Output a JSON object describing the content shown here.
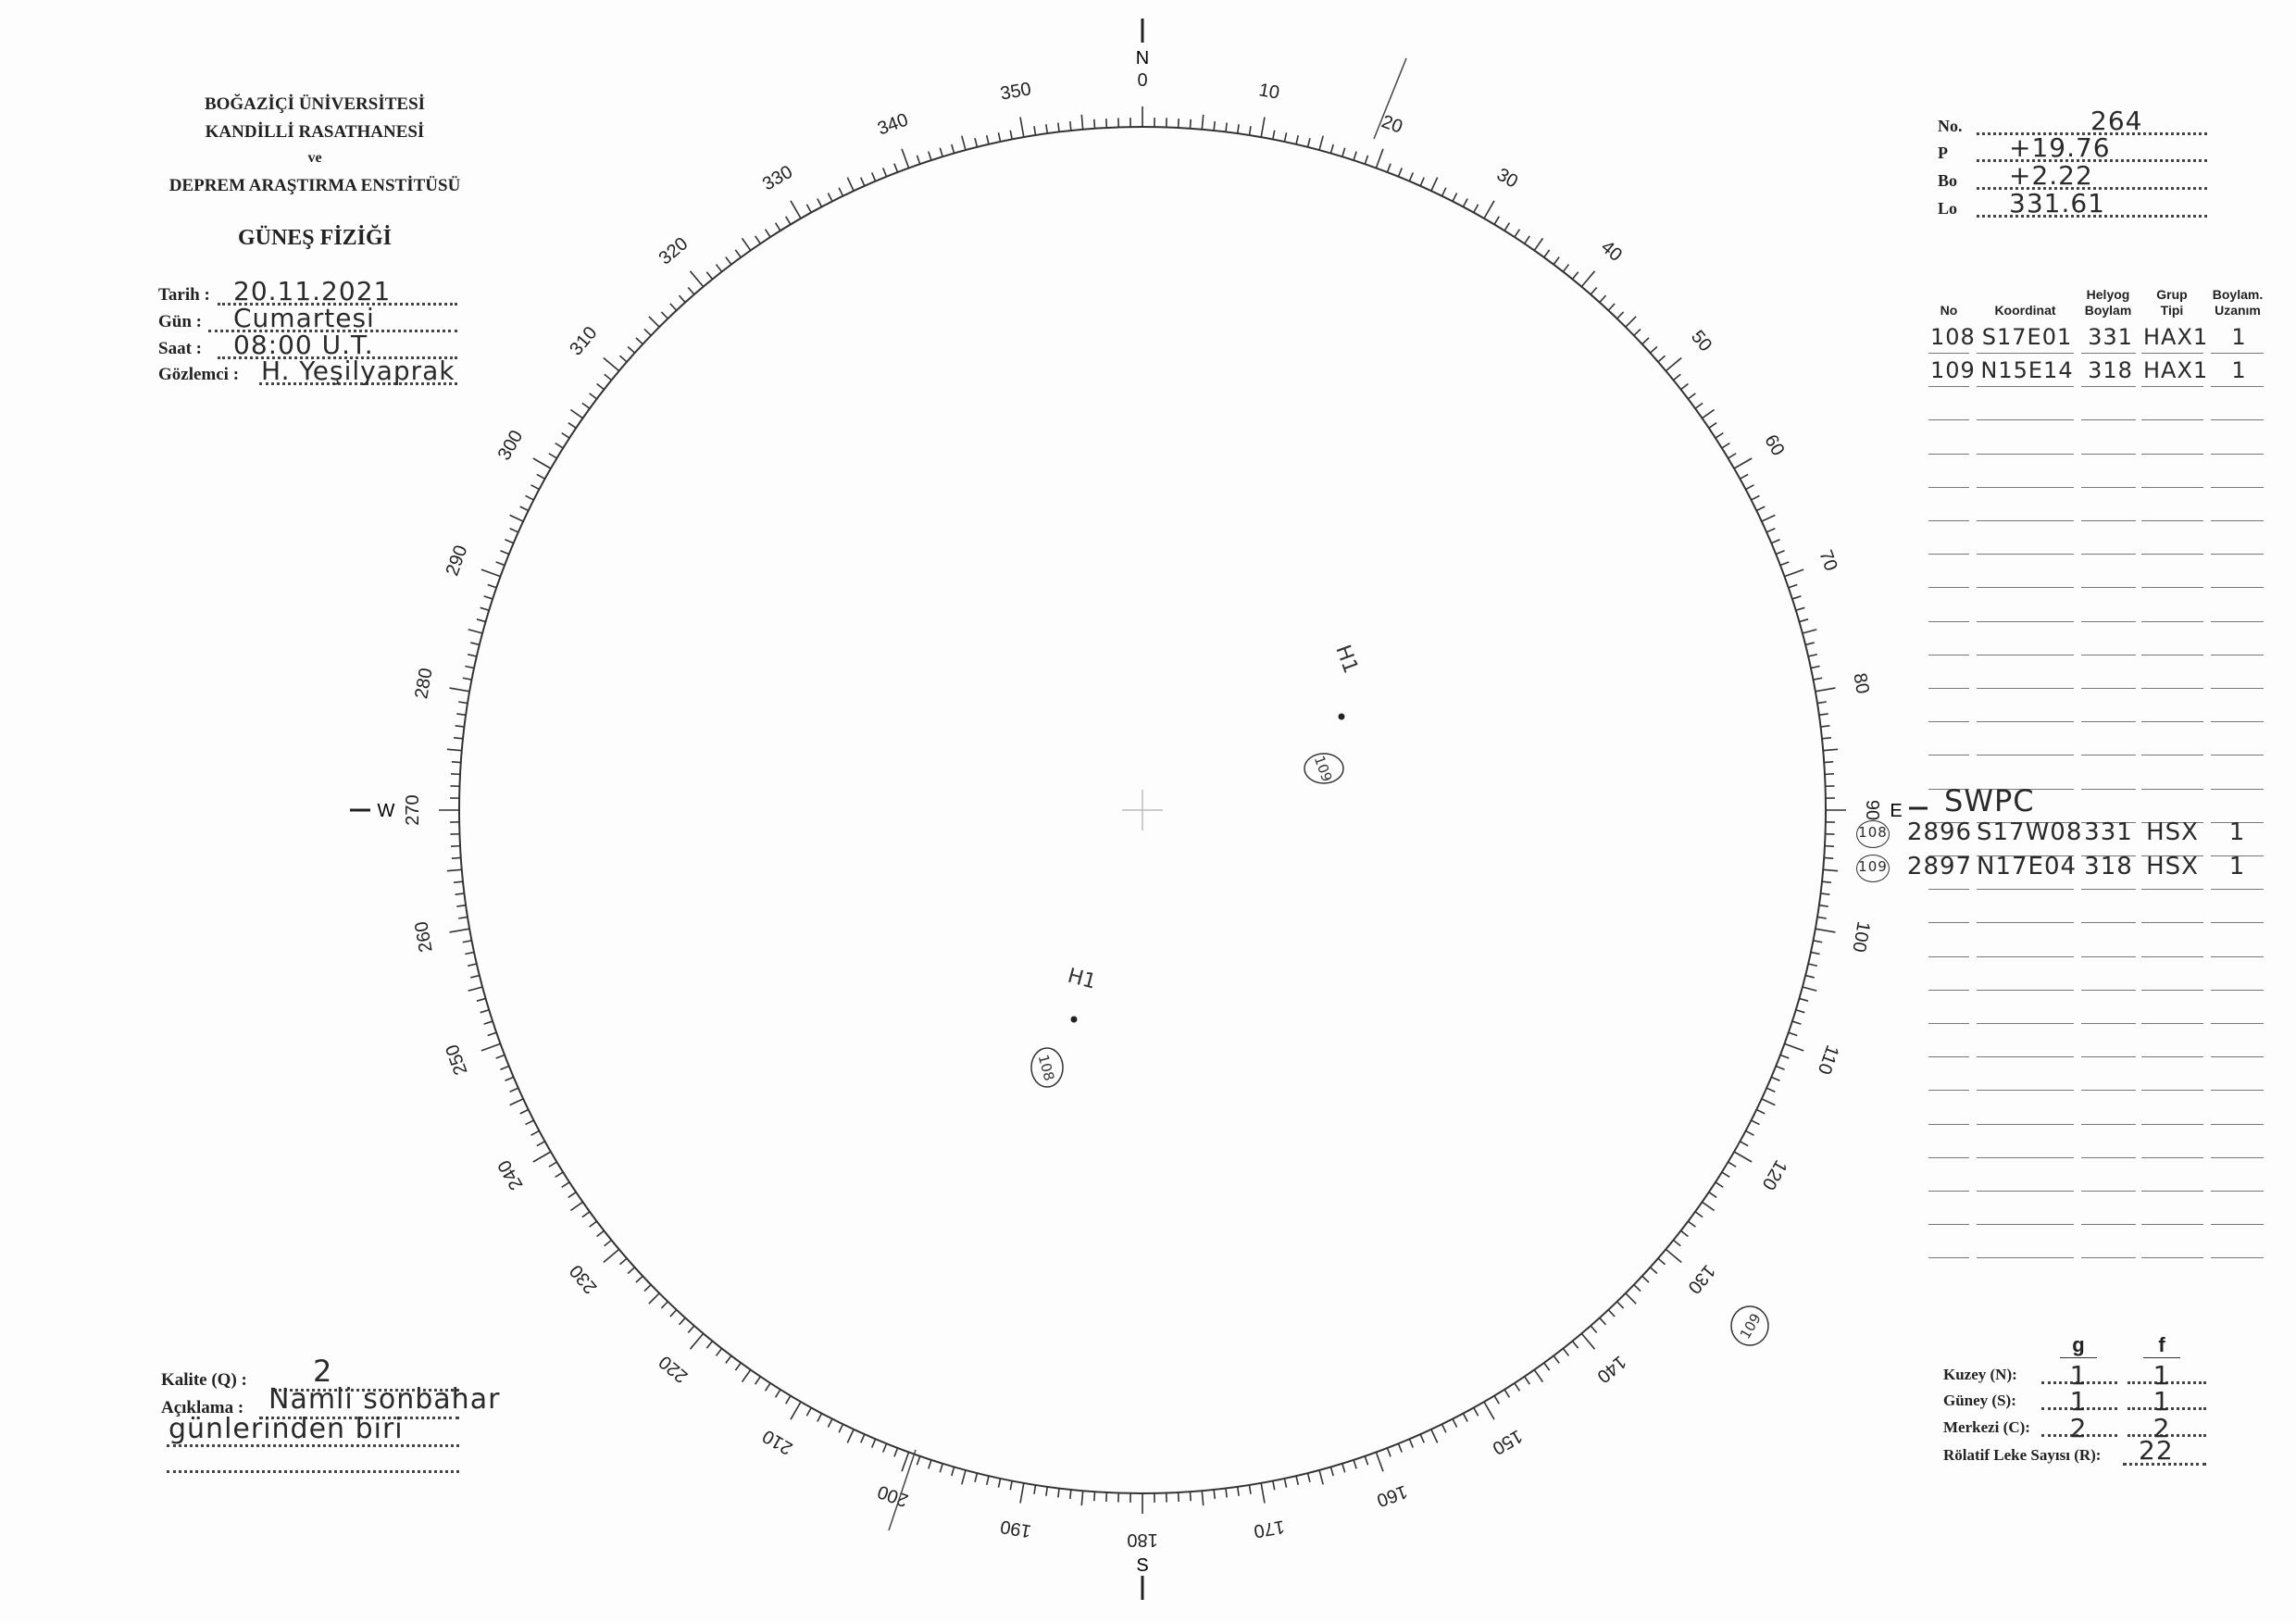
{
  "header": {
    "line1": "BOĞAZİÇİ ÜNİVERSİTESİ",
    "line2": "KANDİLLİ RASATHANESİ",
    "line3": "ve",
    "line4": "DEPREM ARAŞTIRMA ENSTİTÜSÜ",
    "title": "GÜNEŞ FİZİĞİ"
  },
  "fields": [
    {
      "label": "Tarih :",
      "value": "20.11.2021"
    },
    {
      "label": "Gün :",
      "value": "Cumartesi"
    },
    {
      "label": "Saat :",
      "value": "08:00 U.T."
    },
    {
      "label": "Gözlemci :",
      "value": "H. Yeşilyaprak"
    }
  ],
  "params": [
    {
      "label": "No.",
      "value": "264"
    },
    {
      "label": "P",
      "value": "+19.76"
    },
    {
      "label": "Bo",
      "value": "+2.22"
    },
    {
      "label": "Lo",
      "value": "331.61"
    }
  ],
  "table": {
    "columns": [
      "No",
      "Koordinat",
      "Helyog\nBoylam",
      "Grup\nTipi",
      "Boylam.\nUzanım"
    ],
    "rows": [
      [
        "108",
        "S17E01",
        "331",
        "HAX1",
        "1"
      ],
      [
        "109",
        "N15E14",
        "318",
        "HAX1",
        "1"
      ]
    ]
  },
  "swpc": {
    "title": "SWPC",
    "rows": [
      [
        "108",
        "2896",
        "S17W08",
        "331",
        "HSX",
        "1"
      ],
      [
        "109",
        "2897",
        "N17E04",
        "318",
        "HSX",
        "1"
      ]
    ]
  },
  "compass": {
    "labels": [
      "0",
      "10",
      "20",
      "30",
      "40",
      "50",
      "60",
      "70",
      "80",
      "90",
      "100",
      "110",
      "120",
      "130",
      "140",
      "150",
      "160",
      "170",
      "180",
      "190",
      "200",
      "210",
      "220",
      "230",
      "240",
      "250",
      "260",
      "270",
      "280",
      "290",
      "300",
      "310",
      "320",
      "330",
      "340",
      "350"
    ],
    "north": "N",
    "south": "S",
    "west": "W",
    "east": "E"
  },
  "spots": [
    {
      "type": "H1",
      "number": "109"
    },
    {
      "type": "H1",
      "number": "108"
    },
    {
      "number": "109"
    }
  ],
  "quality": {
    "label": "Kalite (Q) :",
    "value": "2"
  },
  "comment": {
    "label": "Açıklama :",
    "line1": "Namli sonbahar",
    "line2": "günlerinden biri"
  },
  "counts": {
    "col_g": "g",
    "col_f": "f",
    "rows": [
      {
        "label": "Kuzey (N):",
        "g": "1",
        "f": "1"
      },
      {
        "label": "Güney (S):",
        "g": "1",
        "f": "1"
      },
      {
        "label": "Merkezi (C):",
        "g": "2",
        "f": "2"
      }
    ],
    "r_label": "Rölatif Leke Sayısı (R):",
    "r_value": "22"
  }
}
